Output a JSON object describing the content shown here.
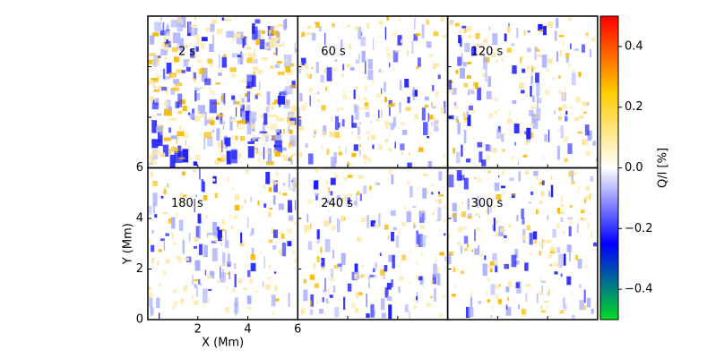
{
  "chart_data": {
    "type": "heatmap",
    "panels": [
      {
        "label": "2 s"
      },
      {
        "label": "60 s"
      },
      {
        "label": "120 s"
      },
      {
        "label": "180 s"
      },
      {
        "label": "240 s"
      },
      {
        "label": "300 s"
      }
    ],
    "xlabel": "X (Mm)",
    "ylabel": "Y (Mm)",
    "xlim": [
      0,
      6
    ],
    "xticks": [
      2,
      4,
      6
    ],
    "ylim": [
      0,
      6
    ],
    "yticks": [
      0,
      2,
      4,
      6
    ],
    "colorbar": {
      "label": "Q/I [%]",
      "lim": [
        -0.5,
        0.5
      ],
      "ticks": [
        {
          "value": -0.4,
          "label": "−0.4"
        },
        {
          "value": -0.2,
          "label": "−0.2"
        },
        {
          "value": 0,
          "label": "0.0"
        },
        0.2,
        0.4
      ],
      "colors": [
        "#00dd22",
        "#0000ff",
        "#ffffff",
        "#ffcc00",
        "#ff0000"
      ]
    }
  }
}
